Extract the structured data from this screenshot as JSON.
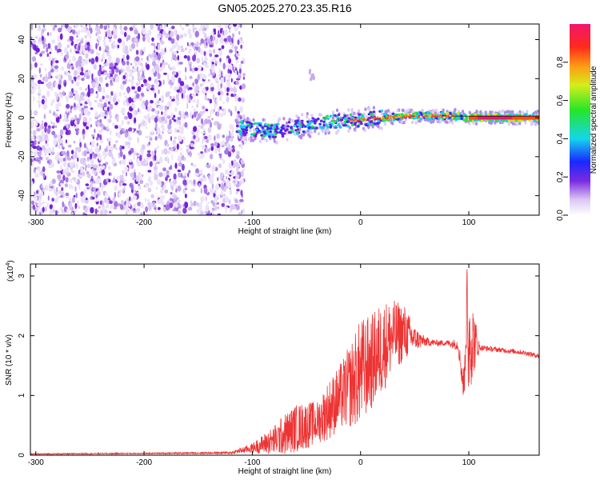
{
  "figure_title": "GN05.2025.270.23.35.R16",
  "chart_data": [
    {
      "type": "heatmap",
      "title": "GN05.2025.270.23.35.R16",
      "xlabel": "Height of straight line (km)",
      "ylabel": "Frequency (Hz)",
      "xlim": [
        -305,
        165
      ],
      "ylim": [
        -50,
        48
      ],
      "xticks": [
        -300,
        -200,
        -100,
        0,
        100
      ],
      "yticks": [
        -40,
        -20,
        0,
        20,
        40
      ],
      "noise_region_x": [
        -305,
        -112
      ],
      "signal_ridge": [
        {
          "x": -115,
          "freq": -5,
          "amp": 0.35
        },
        {
          "x": -100,
          "freq": -6,
          "amp": 0.38
        },
        {
          "x": -80,
          "freq": -7,
          "amp": 0.4
        },
        {
          "x": -60,
          "freq": -5,
          "amp": 0.42
        },
        {
          "x": -40,
          "freq": -3,
          "amp": 0.45
        },
        {
          "x": -20,
          "freq": -2,
          "amp": 0.5
        },
        {
          "x": 0,
          "freq": -1,
          "amp": 0.58
        },
        {
          "x": 20,
          "freq": 0,
          "amp": 0.65
        },
        {
          "x": 40,
          "freq": 0.5,
          "amp": 0.7
        },
        {
          "x": 60,
          "freq": 1,
          "amp": 0.7
        },
        {
          "x": 80,
          "freq": 1,
          "amp": 0.72
        },
        {
          "x": 100,
          "freq": 0,
          "amp": 0.95
        },
        {
          "x": 120,
          "freq": 0,
          "amp": 1.0
        },
        {
          "x": 140,
          "freq": 0,
          "amp": 0.95
        },
        {
          "x": 165,
          "freq": 0,
          "amp": 0.85
        }
      ],
      "colorbar": {
        "label": "Normalized spectral amplitude",
        "ticks": [
          "0.0",
          "0.2",
          "0.4",
          "0.6",
          "0.8"
        ]
      }
    },
    {
      "type": "line",
      "xlabel": "Height of straight line (km)",
      "ylabel": "SNR (10 * v/v)",
      "scale_label": "(x10",
      "scale_exp": "4",
      "scale_close": ")",
      "xlim": [
        -305,
        165
      ],
      "ylim": [
        0,
        3.2
      ],
      "xticks": [
        -300,
        -200,
        -100,
        0,
        100
      ],
      "yticks": [
        0,
        1,
        2,
        3
      ],
      "series": [
        {
          "name": "SNR",
          "color": "#ee3333",
          "x": [
            -305,
            -200,
            -120,
            -100,
            -80,
            -70,
            -60,
            -50,
            -40,
            -30,
            -20,
            -10,
            0,
            10,
            20,
            30,
            40,
            50,
            60,
            70,
            80,
            90,
            95,
            97,
            100,
            110,
            130,
            150,
            165
          ],
          "y": [
            0.02,
            0.03,
            0.04,
            0.12,
            0.25,
            0.35,
            0.45,
            0.5,
            0.55,
            0.75,
            0.95,
            1.15,
            1.4,
            1.55,
            1.8,
            2.0,
            2.05,
            1.95,
            1.9,
            1.88,
            1.88,
            1.85,
            1.2,
            1.3,
            2.0,
            1.8,
            1.76,
            1.72,
            1.66
          ],
          "spread": [
            0.01,
            0.01,
            0.02,
            0.08,
            0.25,
            0.35,
            0.4,
            0.4,
            0.35,
            0.5,
            0.55,
            0.7,
            0.9,
            0.8,
            0.8,
            0.6,
            0.5,
            0.2,
            0.08,
            0.05,
            0.05,
            0.1,
            0.3,
            0.4,
            1.0,
            0.05,
            0.04,
            0.04,
            0.04
          ]
        }
      ]
    }
  ]
}
